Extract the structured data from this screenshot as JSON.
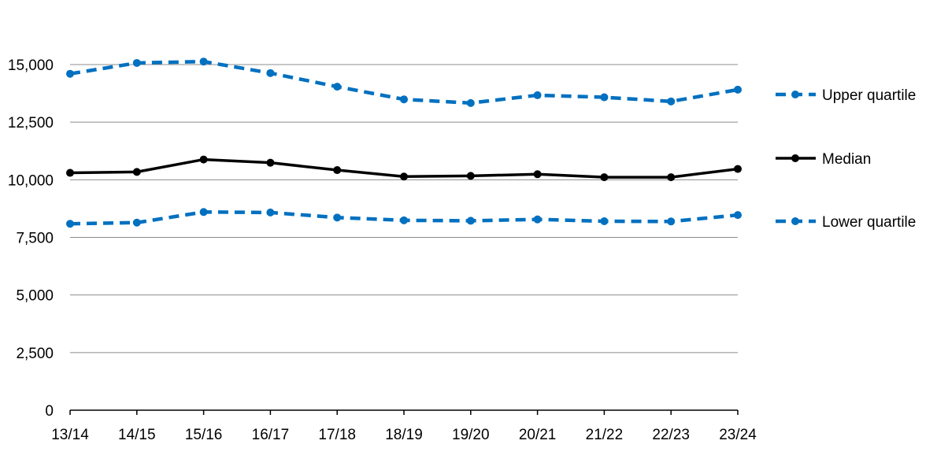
{
  "chart_data": {
    "type": "line",
    "title": "",
    "xlabel": "",
    "ylabel": "",
    "categories": [
      "13/14",
      "14/15",
      "15/16",
      "16/17",
      "17/18",
      "18/19",
      "19/20",
      "20/21",
      "21/22",
      "22/23",
      "23/24"
    ],
    "ylim": [
      0,
      15000
    ],
    "yticks": [
      0,
      2500,
      5000,
      7500,
      10000,
      12500,
      15000
    ],
    "ytick_labels": [
      "0",
      "2,500",
      "5,000",
      "7,500",
      "10,000",
      "12,500",
      "15,000"
    ],
    "grid": "horizontal",
    "legend_position": "right",
    "series": [
      {
        "name": "Upper quartile",
        "color": "#0070C0",
        "style": "dashed",
        "values": [
          14600,
          15070,
          15130,
          14630,
          14040,
          13490,
          13330,
          13670,
          13580,
          13400,
          13910
        ]
      },
      {
        "name": "Median",
        "color": "#000000",
        "style": "solid",
        "values": [
          10300,
          10340,
          10880,
          10740,
          10420,
          10140,
          10170,
          10240,
          10110,
          10110,
          10470
        ]
      },
      {
        "name": "Lower quartile",
        "color": "#0070C0",
        "style": "dashed",
        "values": [
          8090,
          8140,
          8600,
          8580,
          8360,
          8240,
          8220,
          8280,
          8200,
          8190,
          8470
        ]
      }
    ]
  }
}
